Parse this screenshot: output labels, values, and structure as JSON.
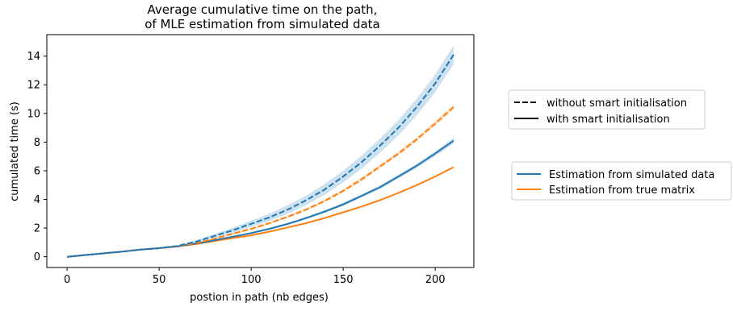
{
  "chart_data": {
    "type": "line",
    "title_lines": [
      "Average cumulative time on the path,",
      "of MLE estimation from simulated data"
    ],
    "xlabel": "postion in path (nb edges)",
    "ylabel": "cumulated time (s)",
    "xlim": [
      -11,
      221
    ],
    "ylim": [
      -0.75,
      15.5
    ],
    "xticks": [
      0,
      50,
      100,
      150,
      200
    ],
    "yticks": [
      0,
      2,
      4,
      6,
      8,
      10,
      12,
      14
    ],
    "grid": false,
    "colors": {
      "blue": "#1f77b4",
      "orange": "#ff7f0e",
      "band_blue": "#1f77b4",
      "band_orange": "#ff7f0e"
    },
    "x": [
      0,
      10,
      20,
      30,
      40,
      50,
      60,
      70,
      80,
      90,
      100,
      110,
      120,
      130,
      140,
      150,
      160,
      170,
      180,
      190,
      200,
      210
    ],
    "series": [
      {
        "key": "blue_dashed",
        "color": "blue",
        "style": "dashed",
        "values": [
          0.0,
          0.12,
          0.24,
          0.36,
          0.5,
          0.6,
          0.75,
          1.05,
          1.45,
          1.85,
          2.3,
          2.75,
          3.3,
          3.95,
          4.7,
          5.6,
          6.6,
          7.75,
          9.0,
          10.45,
          12.1,
          14.1
        ],
        "band": [
          0.0,
          0.01,
          0.02,
          0.03,
          0.04,
          0.05,
          0.06,
          0.1,
          0.14,
          0.18,
          0.22,
          0.26,
          0.3,
          0.34,
          0.38,
          0.42,
          0.46,
          0.5,
          0.54,
          0.58,
          0.62,
          0.66
        ]
      },
      {
        "key": "orange_dashed",
        "color": "orange",
        "style": "dashed",
        "values": [
          0.0,
          0.12,
          0.24,
          0.36,
          0.5,
          0.6,
          0.72,
          0.95,
          1.25,
          1.6,
          1.95,
          2.35,
          2.8,
          3.3,
          3.9,
          4.6,
          5.4,
          6.3,
          7.2,
          8.2,
          9.3,
          10.45
        ],
        "band": [
          0.0,
          0.0,
          0.01,
          0.01,
          0.01,
          0.02,
          0.02,
          0.03,
          0.04,
          0.05,
          0.06,
          0.07,
          0.08,
          0.09,
          0.1,
          0.11,
          0.12,
          0.13,
          0.14,
          0.15,
          0.16,
          0.17
        ]
      },
      {
        "key": "blue_solid",
        "color": "blue",
        "style": "solid",
        "values": [
          0.0,
          0.12,
          0.24,
          0.36,
          0.5,
          0.6,
          0.72,
          0.92,
          1.15,
          1.4,
          1.65,
          1.95,
          2.3,
          2.7,
          3.15,
          3.65,
          4.25,
          4.85,
          5.6,
          6.35,
          7.2,
          8.1
        ],
        "band": [
          0.0,
          0.0,
          0.01,
          0.01,
          0.01,
          0.02,
          0.02,
          0.03,
          0.04,
          0.05,
          0.06,
          0.07,
          0.08,
          0.09,
          0.1,
          0.11,
          0.12,
          0.13,
          0.14,
          0.15,
          0.17,
          0.2
        ]
      },
      {
        "key": "orange_solid",
        "color": "orange",
        "style": "solid",
        "values": [
          0.0,
          0.12,
          0.24,
          0.36,
          0.5,
          0.6,
          0.72,
          0.88,
          1.1,
          1.3,
          1.5,
          1.75,
          2.05,
          2.35,
          2.7,
          3.1,
          3.5,
          3.95,
          4.45,
          5.0,
          5.6,
          6.25
        ],
        "band": [
          0.0,
          0.0,
          0.0,
          0.0,
          0.0,
          0.0,
          0.01,
          0.01,
          0.01,
          0.01,
          0.01,
          0.01,
          0.02,
          0.02,
          0.02,
          0.02,
          0.02,
          0.03,
          0.03,
          0.03,
          0.04,
          0.04
        ]
      }
    ],
    "legend_style": {
      "placement": "right",
      "entries": [
        {
          "label": "without smart initialisation",
          "style": "dashed"
        },
        {
          "label": "with smart initialisation",
          "style": "solid"
        }
      ]
    },
    "legend_source": {
      "placement": "right",
      "entries": [
        {
          "label": "Estimation from simulated data",
          "color": "blue"
        },
        {
          "label": "Estimation from true matrix",
          "color": "orange"
        }
      ]
    }
  }
}
